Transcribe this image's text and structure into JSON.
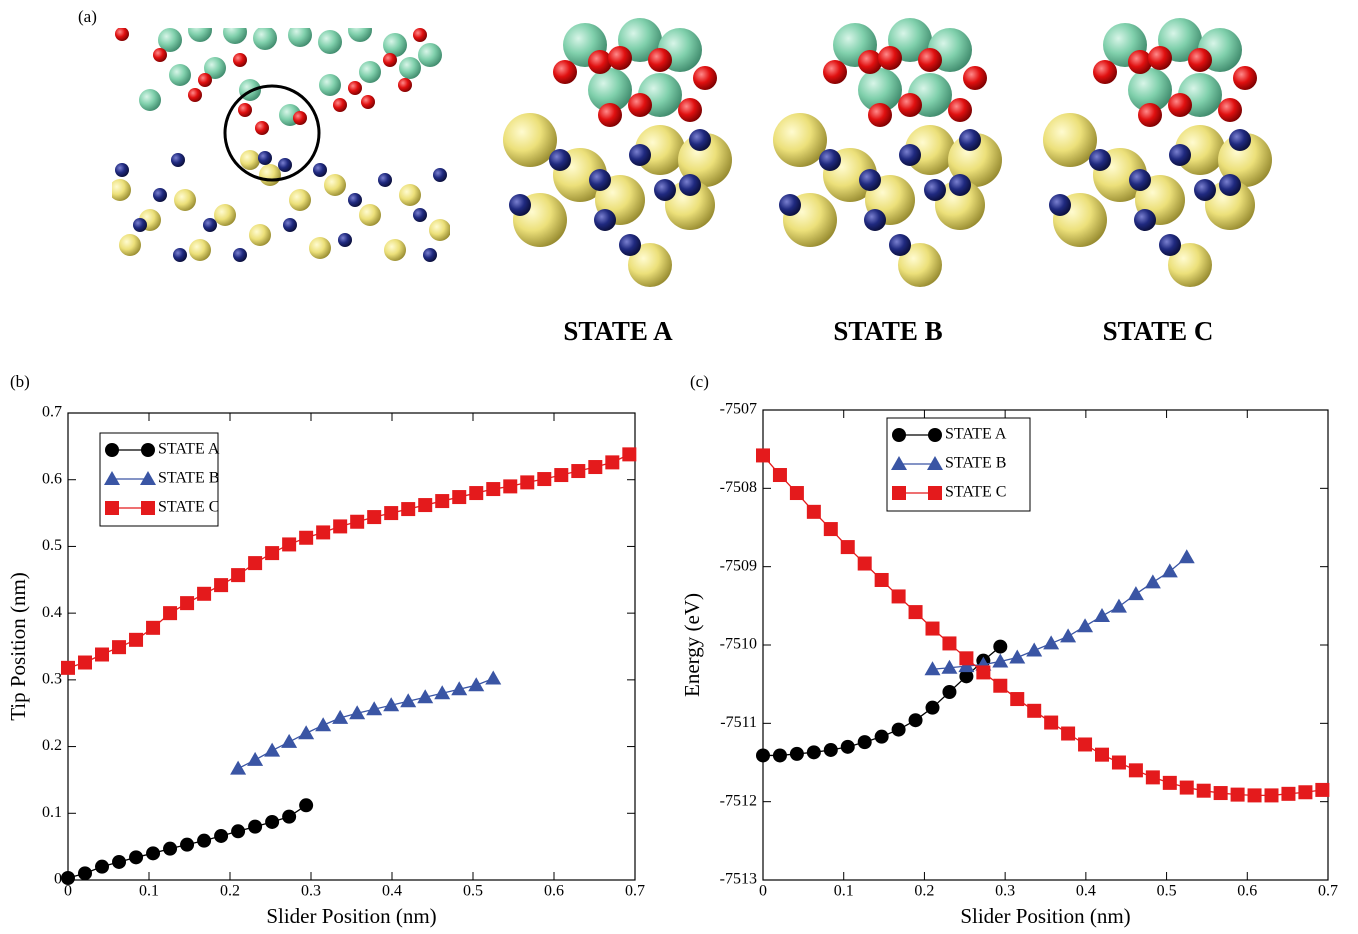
{
  "panel_a": {
    "label": "(a)",
    "captions": [
      "STATE A",
      "STATE B",
      "STATE C"
    ]
  },
  "chart_data": [
    {
      "panel_label": "(b)",
      "type": "line",
      "xlabel": "Slider Position (nm)",
      "ylabel": "Tip Position (nm)",
      "xlim": [
        0,
        0.7
      ],
      "ylim": [
        0,
        0.7
      ],
      "xticks": [
        0,
        0.1,
        0.2,
        0.3,
        0.4,
        0.5,
        0.6,
        0.7
      ],
      "yticks": [
        0,
        0.1,
        0.2,
        0.3,
        0.4,
        0.5,
        0.6,
        0.7
      ],
      "legend": "upper left",
      "series": [
        {
          "name": "STATE A",
          "color": "#000000",
          "marker": "circle",
          "x": [
            0,
            0.021,
            0.042,
            0.063,
            0.084,
            0.105,
            0.126,
            0.147,
            0.168,
            0.189,
            0.21,
            0.231,
            0.252,
            0.273,
            0.294
          ],
          "values": [
            0.003,
            0.01,
            0.02,
            0.027,
            0.034,
            0.04,
            0.047,
            0.053,
            0.059,
            0.066,
            0.073,
            0.08,
            0.087,
            0.095,
            0.112
          ]
        },
        {
          "name": "STATE B",
          "color": "#3a55a4",
          "marker": "triangle",
          "x": [
            0.21,
            0.231,
            0.252,
            0.273,
            0.294,
            0.315,
            0.336,
            0.357,
            0.378,
            0.399,
            0.42,
            0.441,
            0.462,
            0.483,
            0.504,
            0.525
          ],
          "values": [
            0.167,
            0.18,
            0.194,
            0.207,
            0.22,
            0.232,
            0.243,
            0.25,
            0.256,
            0.262,
            0.268,
            0.274,
            0.28,
            0.286,
            0.292,
            0.302
          ]
        },
        {
          "name": "STATE C",
          "color": "#e41a1c",
          "marker": "square",
          "x": [
            0,
            0.021,
            0.042,
            0.063,
            0.084,
            0.105,
            0.126,
            0.147,
            0.168,
            0.189,
            0.21,
            0.231,
            0.252,
            0.273,
            0.294,
            0.315,
            0.336,
            0.357,
            0.378,
            0.399,
            0.42,
            0.441,
            0.462,
            0.483,
            0.504,
            0.525,
            0.546,
            0.567,
            0.588,
            0.609,
            0.63,
            0.651,
            0.672,
            0.693
          ],
          "values": [
            0.318,
            0.326,
            0.338,
            0.349,
            0.36,
            0.378,
            0.4,
            0.415,
            0.429,
            0.442,
            0.457,
            0.475,
            0.49,
            0.503,
            0.513,
            0.521,
            0.53,
            0.537,
            0.544,
            0.55,
            0.556,
            0.562,
            0.568,
            0.574,
            0.58,
            0.586,
            0.59,
            0.596,
            0.601,
            0.607,
            0.613,
            0.619,
            0.626,
            0.638
          ]
        }
      ]
    },
    {
      "panel_label": "(c)",
      "type": "line",
      "xlabel": "Slider Position (nm)",
      "ylabel": "Energy (eV)",
      "xlim": [
        0,
        0.7
      ],
      "ylim": [
        -7513,
        -7507
      ],
      "xticks": [
        0,
        0.1,
        0.2,
        0.3,
        0.4,
        0.5,
        0.6,
        0.7
      ],
      "yticks": [
        -7513,
        -7512,
        -7511,
        -7510,
        -7509,
        -7508,
        -7507
      ],
      "legend": "upper left",
      "series": [
        {
          "name": "STATE A",
          "color": "#000000",
          "marker": "circle",
          "x": [
            0,
            0.021,
            0.042,
            0.063,
            0.084,
            0.105,
            0.126,
            0.147,
            0.168,
            0.189,
            0.21,
            0.231,
            0.252,
            0.273,
            0.294
          ],
          "values": [
            -7511.41,
            -7511.41,
            -7511.39,
            -7511.37,
            -7511.34,
            -7511.3,
            -7511.24,
            -7511.17,
            -7511.08,
            -7510.96,
            -7510.8,
            -7510.6,
            -7510.4,
            -7510.2,
            -7510.02
          ]
        },
        {
          "name": "STATE B",
          "color": "#3a55a4",
          "marker": "triangle",
          "x": [
            0.21,
            0.231,
            0.252,
            0.273,
            0.294,
            0.315,
            0.336,
            0.357,
            0.378,
            0.399,
            0.42,
            0.441,
            0.462,
            0.483,
            0.504,
            0.525
          ],
          "values": [
            -7510.31,
            -7510.29,
            -7510.27,
            -7510.25,
            -7510.21,
            -7510.16,
            -7510.07,
            -7509.98,
            -7509.89,
            -7509.76,
            -7509.63,
            -7509.51,
            -7509.35,
            -7509.2,
            -7509.06,
            -7508.88
          ]
        },
        {
          "name": "STATE C",
          "color": "#e41a1c",
          "marker": "square",
          "x": [
            0,
            0.021,
            0.042,
            0.063,
            0.084,
            0.105,
            0.126,
            0.147,
            0.168,
            0.189,
            0.21,
            0.231,
            0.252,
            0.273,
            0.294,
            0.315,
            0.336,
            0.357,
            0.378,
            0.399,
            0.42,
            0.441,
            0.462,
            0.483,
            0.504,
            0.525,
            0.546,
            0.567,
            0.588,
            0.609,
            0.63,
            0.651,
            0.672,
            0.693
          ],
          "values": [
            -7507.58,
            -7507.83,
            -7508.06,
            -7508.3,
            -7508.52,
            -7508.75,
            -7508.96,
            -7509.17,
            -7509.38,
            -7509.58,
            -7509.79,
            -7509.98,
            -7510.17,
            -7510.35,
            -7510.52,
            -7510.69,
            -7510.84,
            -7510.99,
            -7511.13,
            -7511.27,
            -7511.4,
            -7511.5,
            -7511.6,
            -7511.69,
            -7511.76,
            -7511.82,
            -7511.86,
            -7511.89,
            -7511.91,
            -7511.92,
            -7511.92,
            -7511.9,
            -7511.88,
            -7511.85
          ]
        }
      ]
    }
  ]
}
